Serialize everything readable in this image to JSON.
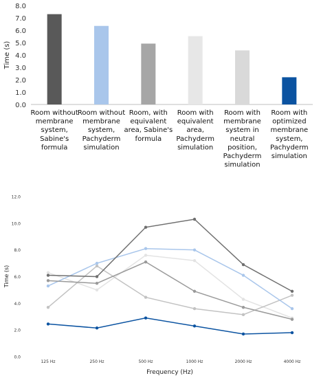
{
  "chart_data": [
    {
      "type": "bar",
      "ylabel": "Time (s)",
      "ylim": [
        0,
        8
      ],
      "yticks": [
        "0.0",
        "1.0",
        "2.0",
        "3.0",
        "4.0",
        "5.0",
        "6.0",
        "7.0",
        "8.0"
      ],
      "grid": false,
      "categories": [
        [
          "Room without",
          "membrane",
          "system,",
          "Sabine's",
          "formula"
        ],
        [
          "Room without",
          "membrane",
          "system,",
          "Pachyderm",
          "simulation"
        ],
        [
          "Room, with",
          "equivalent",
          "area, Sabine's",
          "formula"
        ],
        [
          "Room with",
          "equivalent",
          "area,",
          "Pachyderm",
          "simulation"
        ],
        [
          "Room with",
          "membrane",
          "system in",
          "neutral",
          "position,",
          "Pachyderm",
          "simulation"
        ],
        [
          "Room with",
          "optimized",
          "membrane",
          "system,",
          "Pachyderm",
          "simulation"
        ]
      ],
      "values": [
        7.3,
        6.35,
        4.92,
        5.52,
        4.37,
        2.2
      ],
      "colors": [
        "#595959",
        "#a9c6eb",
        "#a6a6a6",
        "#e7e7e7",
        "#d9d9d9",
        "#0b53a1"
      ]
    },
    {
      "type": "line",
      "xlabel": "Frequency (Hz)",
      "ylabel": "Time (s)",
      "ylim": [
        0,
        12
      ],
      "yticks": [
        "0.0",
        "2.0",
        "4.0",
        "6.0",
        "8.0",
        "10.0",
        "12.0"
      ],
      "x": [
        "125 Hz",
        "250 Hz",
        "500 Hz",
        "1000 Hz",
        "2000 Hz",
        "4000 Hz"
      ],
      "grid": false,
      "series": [
        {
          "color": "#e3e3e3",
          "values": [
            6.3,
            5.0,
            7.6,
            7.2,
            4.3,
            2.9
          ]
        },
        {
          "color": "#c2c2c2",
          "values": [
            3.7,
            6.8,
            4.45,
            3.6,
            3.15,
            4.6
          ]
        },
        {
          "color": "#a9c6eb",
          "values": [
            5.3,
            7.0,
            8.1,
            8.0,
            6.1,
            3.6
          ]
        },
        {
          "color": "#9a9a9a",
          "values": [
            5.7,
            5.5,
            7.1,
            4.9,
            3.7,
            2.8
          ]
        },
        {
          "color": "#6f6f6f",
          "values": [
            6.1,
            6.0,
            9.7,
            10.3,
            6.9,
            4.9
          ]
        },
        {
          "color": "#0b53a1",
          "values": [
            2.45,
            2.15,
            2.9,
            2.3,
            1.7,
            1.8
          ]
        }
      ]
    }
  ]
}
